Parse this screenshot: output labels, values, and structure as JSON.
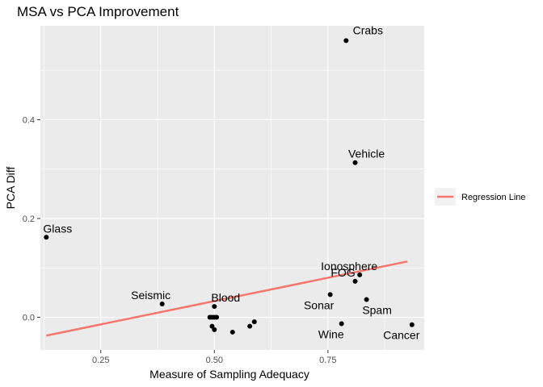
{
  "chart_data": {
    "type": "scatter",
    "title": "MSA vs PCA Improvement",
    "xlabel": "Measure of Sampling Adequacy",
    "ylabel": "PCA Diff",
    "xlim": [
      0.117,
      0.962
    ],
    "ylim": [
      -0.066,
      0.59
    ],
    "x_ticks": [
      {
        "value": 0.25,
        "label": "0.25"
      },
      {
        "value": 0.5,
        "label": "0.50"
      },
      {
        "value": 0.75,
        "label": "0.75"
      }
    ],
    "y_ticks": [
      {
        "value": 0.0,
        "label": "0.0"
      },
      {
        "value": 0.2,
        "label": "0.2"
      },
      {
        "value": 0.4,
        "label": "0.4"
      }
    ],
    "grid": true,
    "points": [
      {
        "x": 0.79,
        "y": 0.56,
        "label": "Crabs"
      },
      {
        "x": 0.81,
        "y": 0.313,
        "label": "Vehicle"
      },
      {
        "x": 0.13,
        "y": 0.162,
        "label": "Glass"
      },
      {
        "x": 0.82,
        "y": 0.086,
        "label": "Ionosphere"
      },
      {
        "x": 0.81,
        "y": 0.073,
        "label": "FOG"
      },
      {
        "x": 0.755,
        "y": 0.046,
        "label": "Sonar"
      },
      {
        "x": 0.835,
        "y": 0.036,
        "label": "Spam"
      },
      {
        "x": 0.385,
        "y": 0.027,
        "label": "Seismic"
      },
      {
        "x": 0.5,
        "y": 0.022,
        "label": "Blood"
      },
      {
        "x": 0.78,
        "y": -0.013,
        "label": "Wine"
      },
      {
        "x": 0.935,
        "y": -0.015,
        "label": "Cancer"
      },
      {
        "x": 0.49,
        "y": 0.0,
        "label": ""
      },
      {
        "x": 0.495,
        "y": 0.0,
        "label": ""
      },
      {
        "x": 0.5,
        "y": 0.0,
        "label": ""
      },
      {
        "x": 0.505,
        "y": 0.0,
        "label": ""
      },
      {
        "x": 0.495,
        "y": -0.018,
        "label": ""
      },
      {
        "x": 0.5,
        "y": -0.025,
        "label": ""
      },
      {
        "x": 0.54,
        "y": -0.03,
        "label": ""
      },
      {
        "x": 0.578,
        "y": -0.018,
        "label": ""
      },
      {
        "x": 0.588,
        "y": -0.009,
        "label": ""
      }
    ],
    "regression_line": {
      "name": "Regression Line",
      "color": "#f8766d",
      "x": [
        0.13,
        0.925
      ],
      "y": [
        -0.037,
        0.113
      ]
    },
    "legend": {
      "position": "right",
      "entries": [
        "Regression Line"
      ]
    },
    "colors": {
      "panel": "#ebebeb",
      "grid": "#ffffff",
      "point": "#000000",
      "line": "#f8766d"
    }
  }
}
